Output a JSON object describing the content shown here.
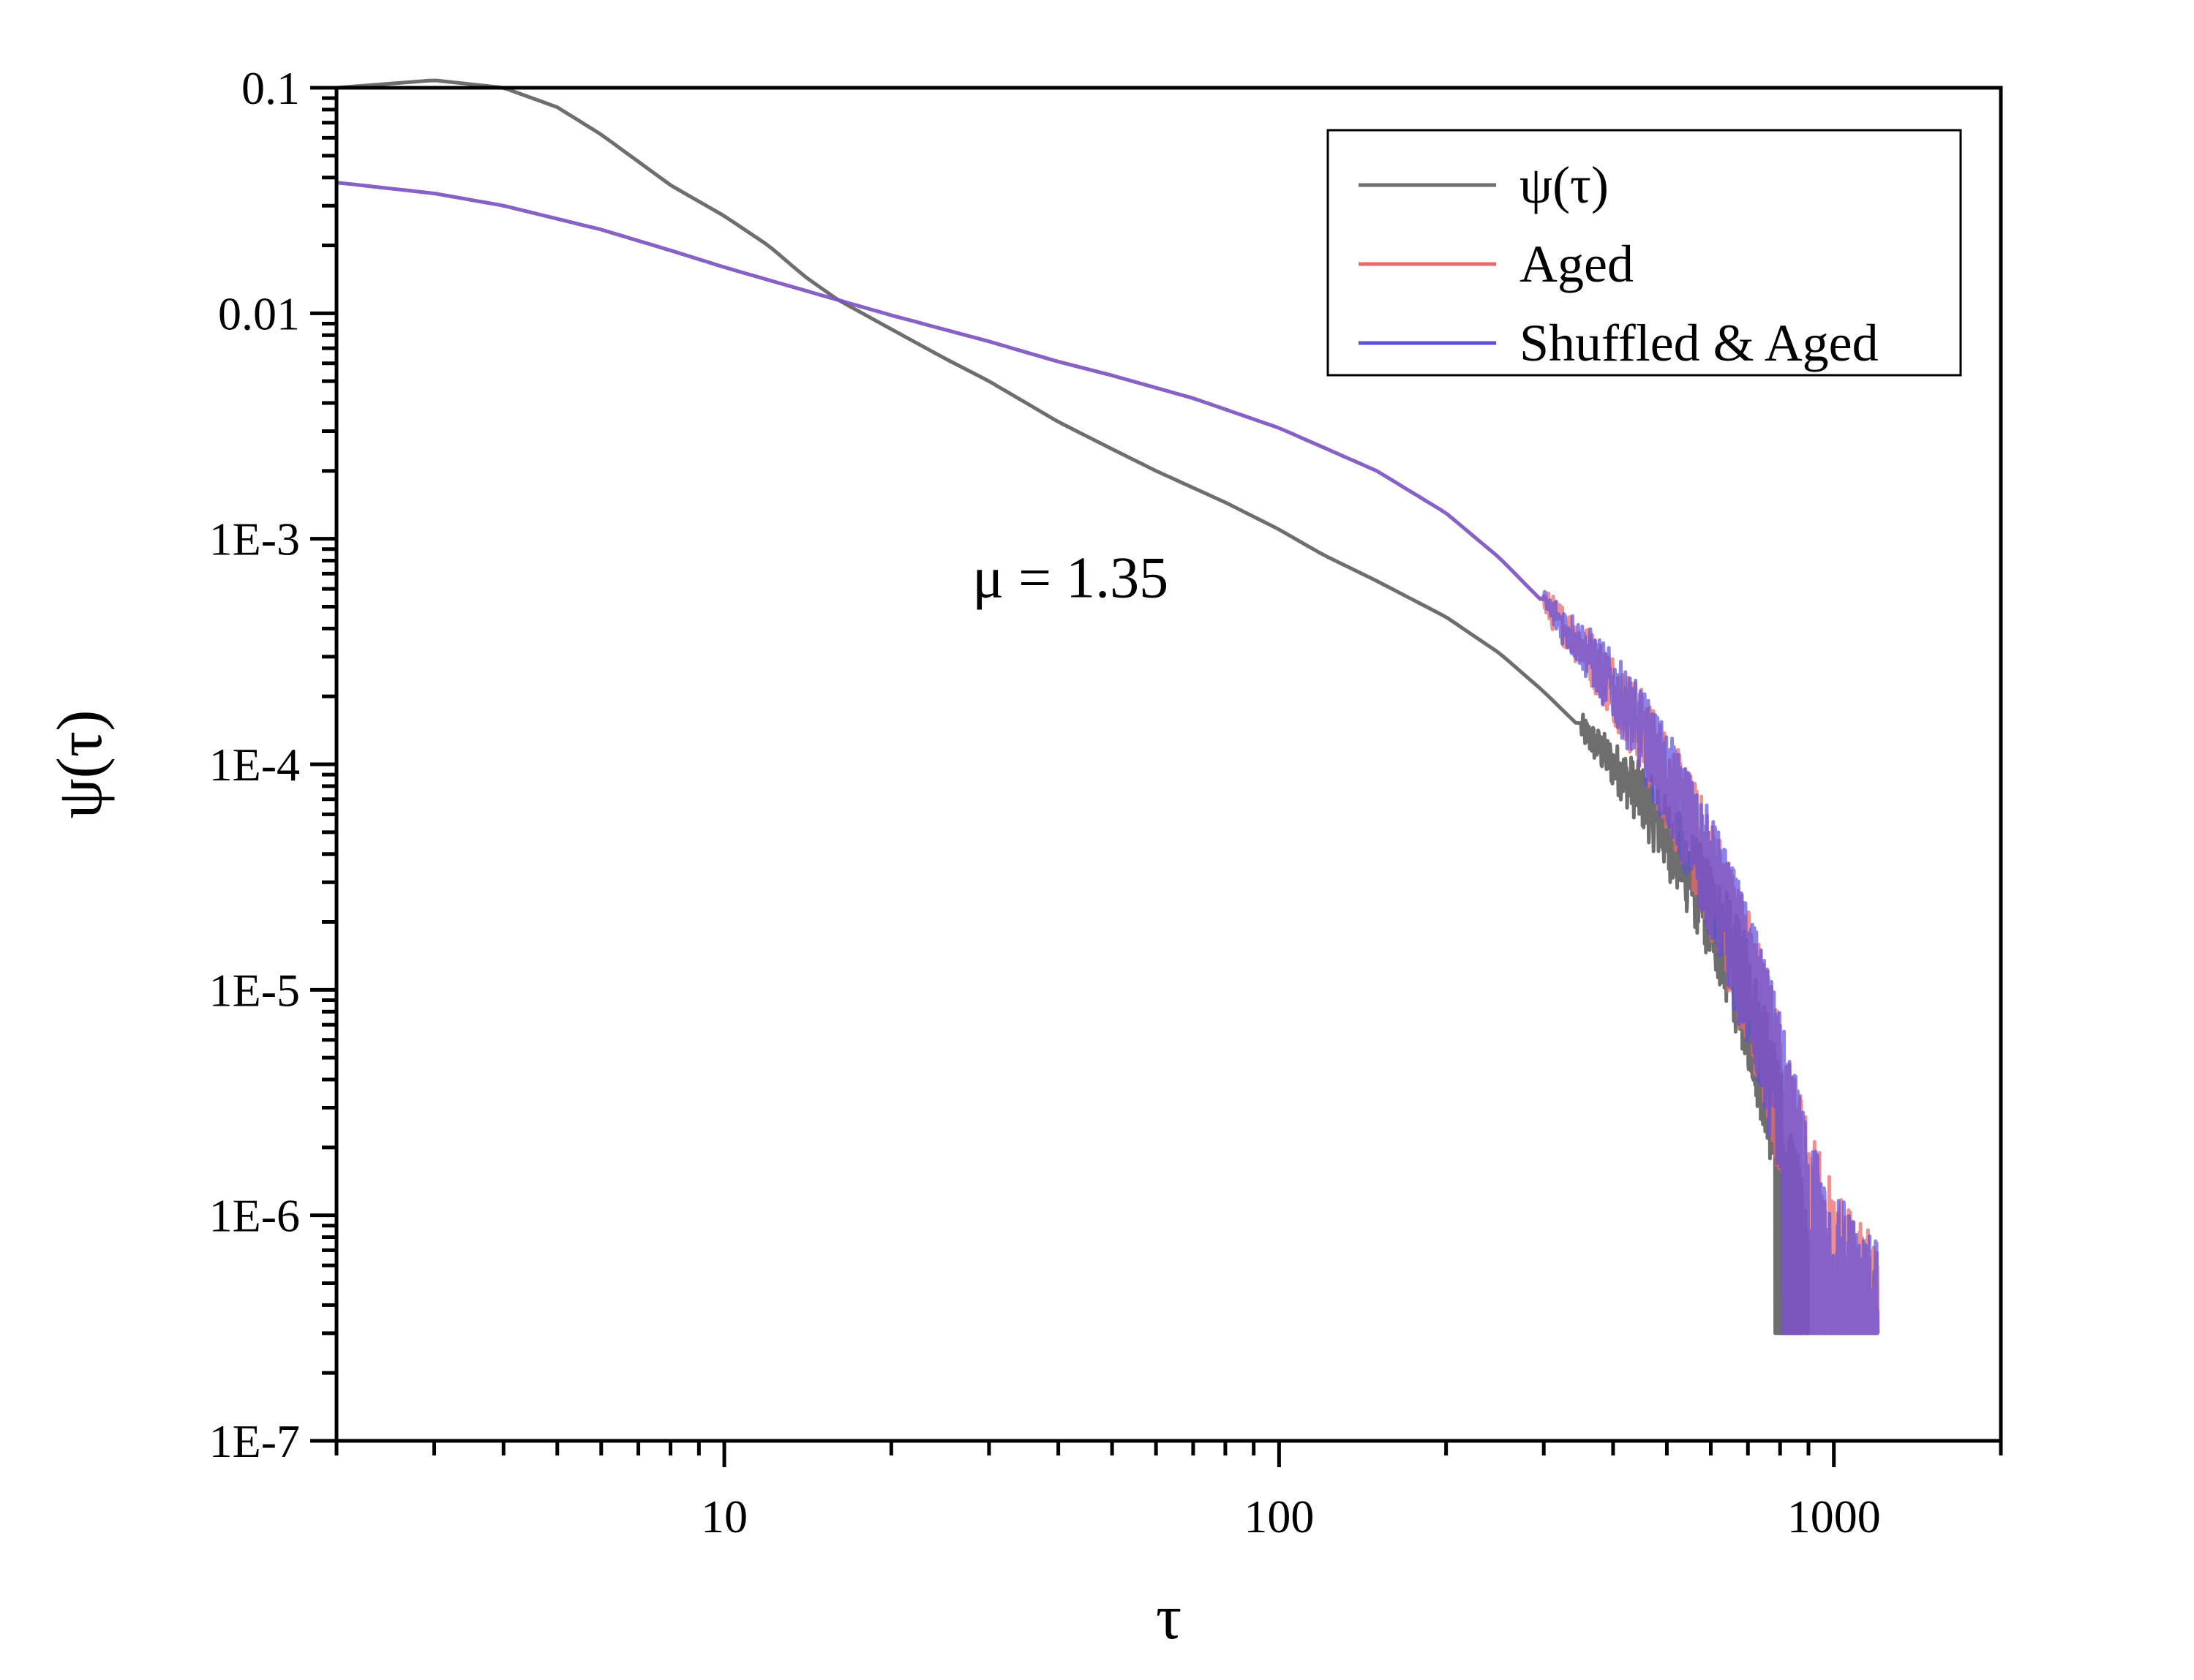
{
  "chart_data": {
    "type": "line",
    "title": "",
    "xlabel": "τ",
    "ylabel": "ψ(τ)",
    "xscale": "log",
    "yscale": "log",
    "xlim": [
      2,
      2000
    ],
    "ylim": [
      1e-07,
      0.1
    ],
    "x_ticks": [
      {
        "value": 10,
        "label": "10"
      },
      {
        "value": 100,
        "label": "100"
      },
      {
        "value": 1000,
        "label": "1000"
      }
    ],
    "y_ticks": [
      {
        "value": 0.1,
        "label": "0.1"
      },
      {
        "value": 0.01,
        "label": "0.01"
      },
      {
        "value": 0.001,
        "label": "1E-3"
      },
      {
        "value": 0.0001,
        "label": "1E-4"
      },
      {
        "value": 1e-05,
        "label": "1E-5"
      },
      {
        "value": 1e-06,
        "label": "1E-6"
      },
      {
        "value": 1e-07,
        "label": "1E-7"
      }
    ],
    "legend_position": "top-right",
    "annotation": "μ = 1.35",
    "series": [
      {
        "name": "ψ(τ)",
        "color": "#6e6e6e",
        "points": [
          [
            2,
            0.1
          ],
          [
            3,
            0.108
          ],
          [
            4,
            0.1
          ],
          [
            5,
            0.082
          ],
          [
            6,
            0.062
          ],
          [
            8,
            0.037
          ],
          [
            10,
            0.027
          ],
          [
            12,
            0.02
          ],
          [
            14,
            0.0145
          ],
          [
            16,
            0.0115
          ],
          [
            20,
            0.0085
          ],
          [
            25,
            0.0063
          ],
          [
            30,
            0.005
          ],
          [
            40,
            0.0033
          ],
          [
            50,
            0.0025
          ],
          [
            60,
            0.002
          ],
          [
            80,
            0.00145
          ],
          [
            100,
            0.0011
          ],
          [
            120,
            0.00085
          ],
          [
            150,
            0.00065
          ],
          [
            200,
            0.00045
          ],
          [
            250,
            0.00031
          ],
          [
            300,
            0.00021
          ],
          [
            350,
            0.000145
          ],
          [
            400,
            0.0001
          ],
          [
            450,
            7.2e-05
          ],
          [
            500,
            4.8e-05
          ],
          [
            550,
            3.3e-05
          ],
          [
            600,
            2.2e-05
          ],
          [
            650,
            1.4e-05
          ],
          [
            700,
            8.5e-06
          ],
          [
            750,
            4.5e-06
          ],
          [
            800,
            2.2e-06
          ],
          [
            850,
            1e-06
          ],
          [
            880,
            6e-07
          ],
          [
            900,
            4e-07
          ]
        ],
        "noise_start": 350,
        "floor": 3e-07
      },
      {
        "name": "Aged",
        "color": "#e8696b",
        "points": [
          [
            2,
            0.038
          ],
          [
            3,
            0.034
          ],
          [
            4,
            0.03
          ],
          [
            6,
            0.0235
          ],
          [
            8,
            0.019
          ],
          [
            10,
            0.016
          ],
          [
            15,
            0.012
          ],
          [
            20,
            0.0098
          ],
          [
            30,
            0.0075
          ],
          [
            40,
            0.0061
          ],
          [
            50,
            0.0053
          ],
          [
            70,
            0.0042
          ],
          [
            100,
            0.0031
          ],
          [
            150,
            0.002
          ],
          [
            200,
            0.0013
          ],
          [
            250,
            0.00082
          ],
          [
            300,
            0.00052
          ],
          [
            350,
            0.00034
          ],
          [
            400,
            0.00022
          ],
          [
            450,
            0.00014
          ],
          [
            500,
            8.5e-05
          ],
          [
            550,
            5.2e-05
          ],
          [
            600,
            3.2e-05
          ],
          [
            650,
            1.9e-05
          ],
          [
            700,
            1.1e-05
          ],
          [
            750,
            6.2e-06
          ],
          [
            800,
            3.4e-06
          ],
          [
            850,
            1.8e-06
          ],
          [
            900,
            9.5e-07
          ],
          [
            1000,
            5e-07
          ],
          [
            1100,
            3.5e-07
          ],
          [
            1200,
            3e-07
          ]
        ],
        "noise_start": 300,
        "floor": 3e-07
      },
      {
        "name": "Shuffled & Aged",
        "color": "#5a4fe0",
        "points": [
          [
            2,
            0.038
          ],
          [
            3,
            0.034
          ],
          [
            4,
            0.03
          ],
          [
            6,
            0.0235
          ],
          [
            8,
            0.019
          ],
          [
            10,
            0.016
          ],
          [
            15,
            0.012
          ],
          [
            20,
            0.0098
          ],
          [
            30,
            0.0075
          ],
          [
            40,
            0.0061
          ],
          [
            50,
            0.0053
          ],
          [
            70,
            0.0042
          ],
          [
            100,
            0.0031
          ],
          [
            150,
            0.002
          ],
          [
            200,
            0.0013
          ],
          [
            250,
            0.00082
          ],
          [
            300,
            0.00052
          ],
          [
            350,
            0.00034
          ],
          [
            400,
            0.00022
          ],
          [
            450,
            0.00014
          ],
          [
            500,
            8.5e-05
          ],
          [
            550,
            5.2e-05
          ],
          [
            600,
            3.2e-05
          ],
          [
            650,
            1.9e-05
          ],
          [
            700,
            1.1e-05
          ],
          [
            750,
            6.2e-06
          ],
          [
            800,
            3.4e-06
          ],
          [
            850,
            1.8e-06
          ],
          [
            900,
            9.5e-07
          ],
          [
            1000,
            5e-07
          ],
          [
            1100,
            3.5e-07
          ],
          [
            1200,
            3e-07
          ]
        ],
        "noise_start": 300,
        "floor": 3e-07
      }
    ]
  }
}
